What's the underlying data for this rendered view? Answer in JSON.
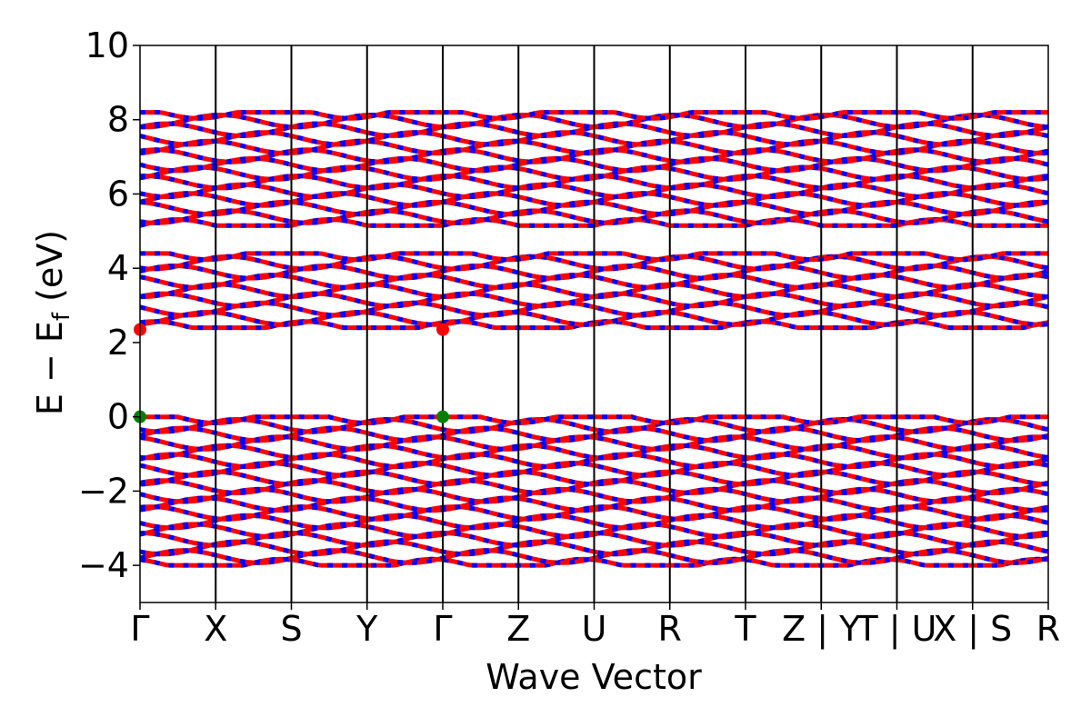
{
  "chart_data": {
    "type": "line",
    "xlabel": "Wave Vector",
    "ylabel_main": "E − E",
    "ylabel_sub": "f",
    "ylabel_unit": " (eV)",
    "ylim": [
      -5,
      10
    ],
    "y_ticks": [
      10,
      8,
      6,
      4,
      2,
      0,
      -2,
      -4
    ],
    "y_tick_labels": [
      "10",
      "8",
      "6",
      "4",
      "2",
      "0",
      "−2",
      "−4"
    ],
    "k_points": [
      "Γ",
      "X",
      "S",
      "Y",
      "Γ",
      "Z",
      "U",
      "R",
      "T",
      "Z | Y",
      "T | U",
      "X | S",
      "R"
    ],
    "grid": "vertical lines at high-symmetry points",
    "legend": "none",
    "colors": {
      "band_primary": "#ff0000",
      "band_secondary": "#0000ff",
      "vbm_marker": "#008000",
      "cbm_marker": "#ff0000",
      "axis": "#000000"
    },
    "band_groups": [
      {
        "name": "",
        "ymin": 5.15,
        "ymax": 8.2,
        "lines": 14
      },
      {
        "name": "",
        "ymin": 2.4,
        "ymax": 4.4,
        "lines": 9
      },
      {
        "name": "",
        "ymin": -4.0,
        "ymax": 0.0,
        "lines": 18
      }
    ],
    "vbm": {
      "energy": 0.0,
      "k_index": [
        0,
        4
      ]
    },
    "cbm": {
      "energy": 2.35,
      "k_index": [
        0,
        4
      ]
    }
  }
}
